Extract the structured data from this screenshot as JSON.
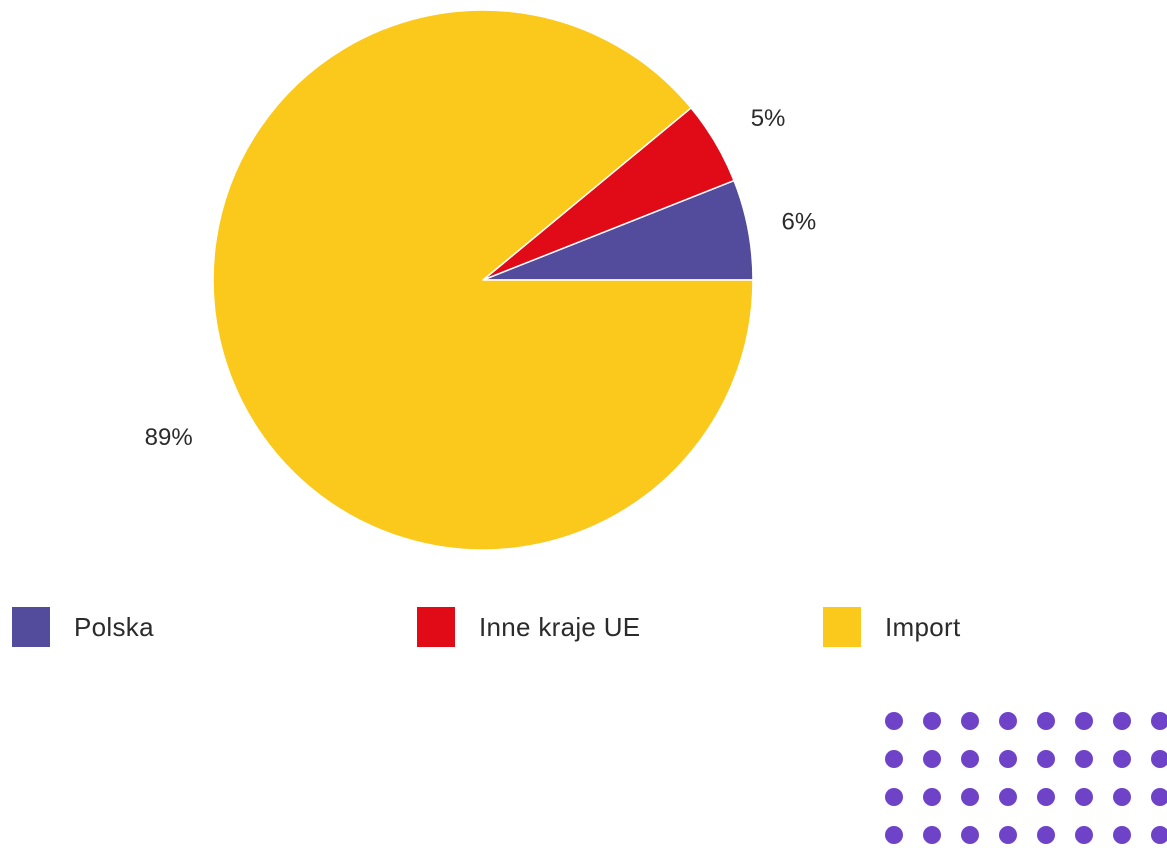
{
  "chart_data": {
    "type": "pie",
    "categories": [
      "Polska",
      "Inne kraje UE",
      "Import"
    ],
    "values": [
      6,
      5,
      89
    ],
    "labels": [
      "6%",
      "5%",
      "89%"
    ],
    "colors": [
      "#534b9b",
      "#e10a17",
      "#fac91c"
    ],
    "legend_position": "bottom"
  },
  "legend": {
    "items": [
      {
        "label": "Polska",
        "color": "#534b9b"
      },
      {
        "label": "Inne kraje UE",
        "color": "#e10a17"
      },
      {
        "label": "Import",
        "color": "#fac91c"
      }
    ]
  },
  "decoration": {
    "dot_color": "#6f43c8"
  }
}
